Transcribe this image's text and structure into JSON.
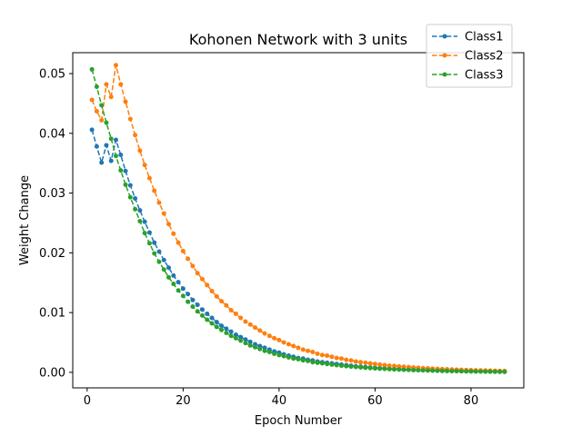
{
  "chart_data": {
    "type": "line",
    "title": "Kohonen Network with 3 units",
    "xlabel": "Epoch Number",
    "ylabel": "Weight Change",
    "xlim": [
      -3,
      91
    ],
    "ylim": [
      -0.0026,
      0.0535
    ],
    "x_ticks": [
      0,
      20,
      40,
      60,
      80
    ],
    "y_ticks": [
      0.0,
      0.01,
      0.02,
      0.03,
      0.04,
      0.05
    ],
    "x_tick_labels": [
      "0",
      "20",
      "40",
      "60",
      "80"
    ],
    "y_tick_labels": [
      "0.00",
      "0.01",
      "0.02",
      "0.03",
      "0.04",
      "0.05"
    ],
    "grid": false,
    "legend_position": "top-right",
    "line_style": "dashed",
    "marker": "circle",
    "x": [
      1,
      2,
      3,
      4,
      5,
      6,
      7,
      8,
      9,
      10,
      11,
      12,
      13,
      14,
      15,
      16,
      17,
      18,
      19,
      20,
      21,
      22,
      23,
      24,
      25,
      26,
      27,
      28,
      29,
      30,
      31,
      32,
      33,
      34,
      35,
      36,
      37,
      38,
      39,
      40,
      41,
      42,
      43,
      44,
      45,
      46,
      47,
      48,
      49,
      50,
      51,
      52,
      53,
      54,
      55,
      56,
      57,
      58,
      59,
      60,
      61,
      62,
      63,
      64,
      65,
      66,
      67,
      68,
      69,
      70,
      71,
      72,
      73,
      74,
      75,
      76,
      77,
      78,
      79,
      80,
      81,
      82,
      83,
      84,
      85,
      86,
      87
    ],
    "series": [
      {
        "name": "Class1",
        "color": "#1f77b4",
        "values": [
          0.0406,
          0.0378,
          0.0351,
          0.038,
          0.0354,
          0.0389,
          0.0364,
          0.0337,
          0.0313,
          0.0291,
          0.0271,
          0.0252,
          0.0234,
          0.0217,
          0.0202,
          0.0188,
          0.0175,
          0.0162,
          0.0151,
          0.014,
          0.0131,
          0.0121,
          0.0113,
          0.0105,
          0.0098,
          0.0091,
          0.0084,
          0.0078,
          0.0073,
          0.0068,
          0.0063,
          0.0059,
          0.0055,
          0.0051,
          0.0047,
          0.0044,
          0.0041,
          0.0038,
          0.0035,
          0.0033,
          0.003,
          0.0028,
          0.0026,
          0.0024,
          0.0023,
          0.0021,
          0.002,
          0.0018,
          0.0017,
          0.0016,
          0.0015,
          0.0014,
          0.0013,
          0.0012,
          0.0011,
          0.001,
          0.00095,
          0.00088,
          0.00082,
          0.00076,
          0.00071,
          0.00066,
          0.00061,
          0.00057,
          0.00053,
          0.00049,
          0.00046,
          0.00043,
          0.0004,
          0.00037,
          0.00034,
          0.00032,
          0.0003,
          0.00028,
          0.00026,
          0.00024,
          0.00022,
          0.0002,
          0.00019,
          0.00018,
          0.00016,
          0.00015,
          0.00014,
          0.00013,
          0.00012,
          0.00011,
          0.0001
        ]
      },
      {
        "name": "Class2",
        "color": "#ff7f0e",
        "values": [
          0.0456,
          0.0437,
          0.0422,
          0.0482,
          0.0461,
          0.0514,
          0.0482,
          0.0453,
          0.0424,
          0.0397,
          0.0371,
          0.0347,
          0.0325,
          0.0304,
          0.0284,
          0.0266,
          0.0248,
          0.0232,
          0.0217,
          0.0203,
          0.019,
          0.0178,
          0.0166,
          0.0156,
          0.0146,
          0.0136,
          0.0127,
          0.0119,
          0.0112,
          0.0104,
          0.0098,
          0.0091,
          0.0085,
          0.008,
          0.0075,
          0.007,
          0.0065,
          0.0061,
          0.0057,
          0.0054,
          0.005,
          0.0047,
          0.0044,
          0.0041,
          0.0038,
          0.0036,
          0.0034,
          0.0031,
          0.0029,
          0.0028,
          0.0026,
          0.0024,
          0.0023,
          0.0021,
          0.002,
          0.0018,
          0.0017,
          0.0016,
          0.0015,
          0.0014,
          0.0013,
          0.0012,
          0.0011,
          0.00106,
          0.00099,
          0.00093,
          0.00087,
          0.00081,
          0.00076,
          0.00071,
          0.00066,
          0.00062,
          0.00058,
          0.00054,
          0.00051,
          0.00048,
          0.00045,
          0.00042,
          0.00039,
          0.00036,
          0.00034,
          0.00032,
          0.0003,
          0.00028,
          0.00026,
          0.00024,
          0.00023
        ]
      },
      {
        "name": "Class3",
        "color": "#2ca02c",
        "values": [
          0.0507,
          0.0478,
          0.0447,
          0.0418,
          0.0391,
          0.0362,
          0.0338,
          0.0314,
          0.0293,
          0.0273,
          0.0253,
          0.0233,
          0.0216,
          0.0199,
          0.0185,
          0.0172,
          0.0159,
          0.0148,
          0.0137,
          0.0128,
          0.0118,
          0.011,
          0.0102,
          0.0095,
          0.0088,
          0.0082,
          0.0076,
          0.0071,
          0.0066,
          0.0061,
          0.0057,
          0.0053,
          0.0049,
          0.0045,
          0.0042,
          0.0039,
          0.0036,
          0.0034,
          0.0031,
          0.0029,
          0.0027,
          0.0025,
          0.0023,
          0.0022,
          0.002,
          0.0019,
          0.0017,
          0.0016,
          0.0015,
          0.0014,
          0.0013,
          0.0012,
          0.0011,
          0.00103,
          0.00096,
          0.00089,
          0.00083,
          0.00077,
          0.00071,
          0.00066,
          0.00062,
          0.00057,
          0.00053,
          0.00049,
          0.00046,
          0.00043,
          0.0004,
          0.00037,
          0.00034,
          0.00032,
          0.0003,
          0.00028,
          0.00026,
          0.00024,
          0.00022,
          0.0002,
          0.00019,
          0.00018,
          0.00016,
          0.00015,
          0.00014,
          0.00013,
          0.00012,
          0.00011,
          0.0001,
          9e-05,
          8e-05
        ]
      }
    ]
  }
}
